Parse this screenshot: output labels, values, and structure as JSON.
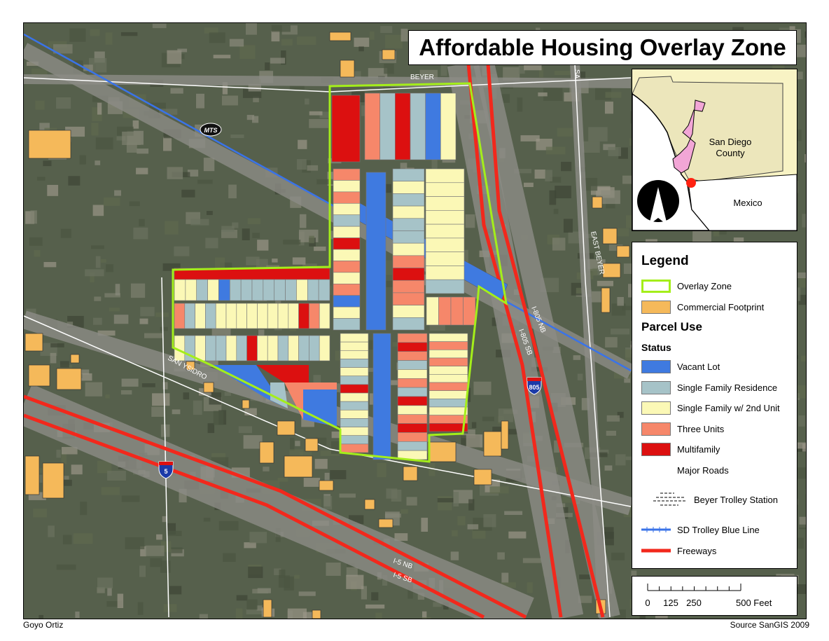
{
  "title": "Affordable Housing Overlay Zone",
  "colors": {
    "vacant": "#3f7ae0",
    "single_family": "#a6c3c8",
    "single_family_2nd": "#fbf8b6",
    "three_units": "#f6876a",
    "multifamily": "#dc1010",
    "commercial": "#f5b95a",
    "overlay": "#a4ee1a",
    "freeway": "#f2281c",
    "trolley": "#3a73e8",
    "county": "#ece6bb",
    "city": "#f2a6d6"
  },
  "inset": {
    "county_label_line1": "San Diego",
    "county_label_line2": "County",
    "mexico_label": "Mexico",
    "north_arrow_icon": "north-arrow-icon"
  },
  "legend": {
    "title": "Legend",
    "overlay_zone": "Overlay Zone",
    "commercial_footprint": "Commercial Footprint",
    "parcel_use": "Parcel Use",
    "status": "Status",
    "vacant_lot": "Vacant Lot",
    "single_family_residence": "Single Family Residence",
    "single_family_2nd_unit": "Single Family w/ 2nd Unit",
    "three_units": "Three Units",
    "multifamily": "Multifamily",
    "major_roads": "Major Roads",
    "trolley_station": "Beyer Trolley Station",
    "trolley_line": "SD Trolley Blue Line",
    "freeways": "Freeways"
  },
  "scale": {
    "ticks": [
      "0",
      "125",
      "250",
      "500 Feet"
    ]
  },
  "road_labels": {
    "beyer": "BEYER",
    "sa": "SA",
    "east_beyer": "EAST BEYER",
    "san_ysidro": "SAN YSIDRO",
    "i805_nb": "I-805 NB",
    "i805_sb": "I-805 SB",
    "i5_nb": "I-5 NB",
    "i5_sb": "I-5 SB",
    "shield_805": "805",
    "shield_5": "5",
    "mts": "MTS"
  },
  "parcel_blocks": [
    {
      "id": "A",
      "codes": "M"
    },
    {
      "id": "B",
      "codes": "TSMSVY"
    },
    {
      "id": "C",
      "codes": "TYTYSYMYTYTVYS"
    },
    {
      "id": "D",
      "codes": "V"
    },
    {
      "id": "E",
      "codes": "SYSYSSYTMTTYS"
    },
    {
      "id": "F",
      "codes": "YYYYYYYYS"
    },
    {
      "id": "G",
      "codes": "M"
    },
    {
      "id": "H",
      "codes": "YYSYVSSSSSSYSS"
    },
    {
      "id": "I",
      "codes": "TSYSYYYYYYYYMTY"
    },
    {
      "id": "J",
      "codes": "YSYSSYSMYYSYSSY"
    },
    {
      "id": "K",
      "codes": "YYYSYSMYSYSYST"
    },
    {
      "id": "L",
      "codes": "V"
    },
    {
      "id": "M",
      "codes": "TMTSYTSMYTMTSY"
    },
    {
      "id": "N",
      "codes": "YTYTYYTYSYTM"
    },
    {
      "id": "O",
      "codes": "YTTT"
    }
  ],
  "footer": {
    "author": "Goyo Ortiz",
    "source": "Source SanGIS 2009"
  }
}
